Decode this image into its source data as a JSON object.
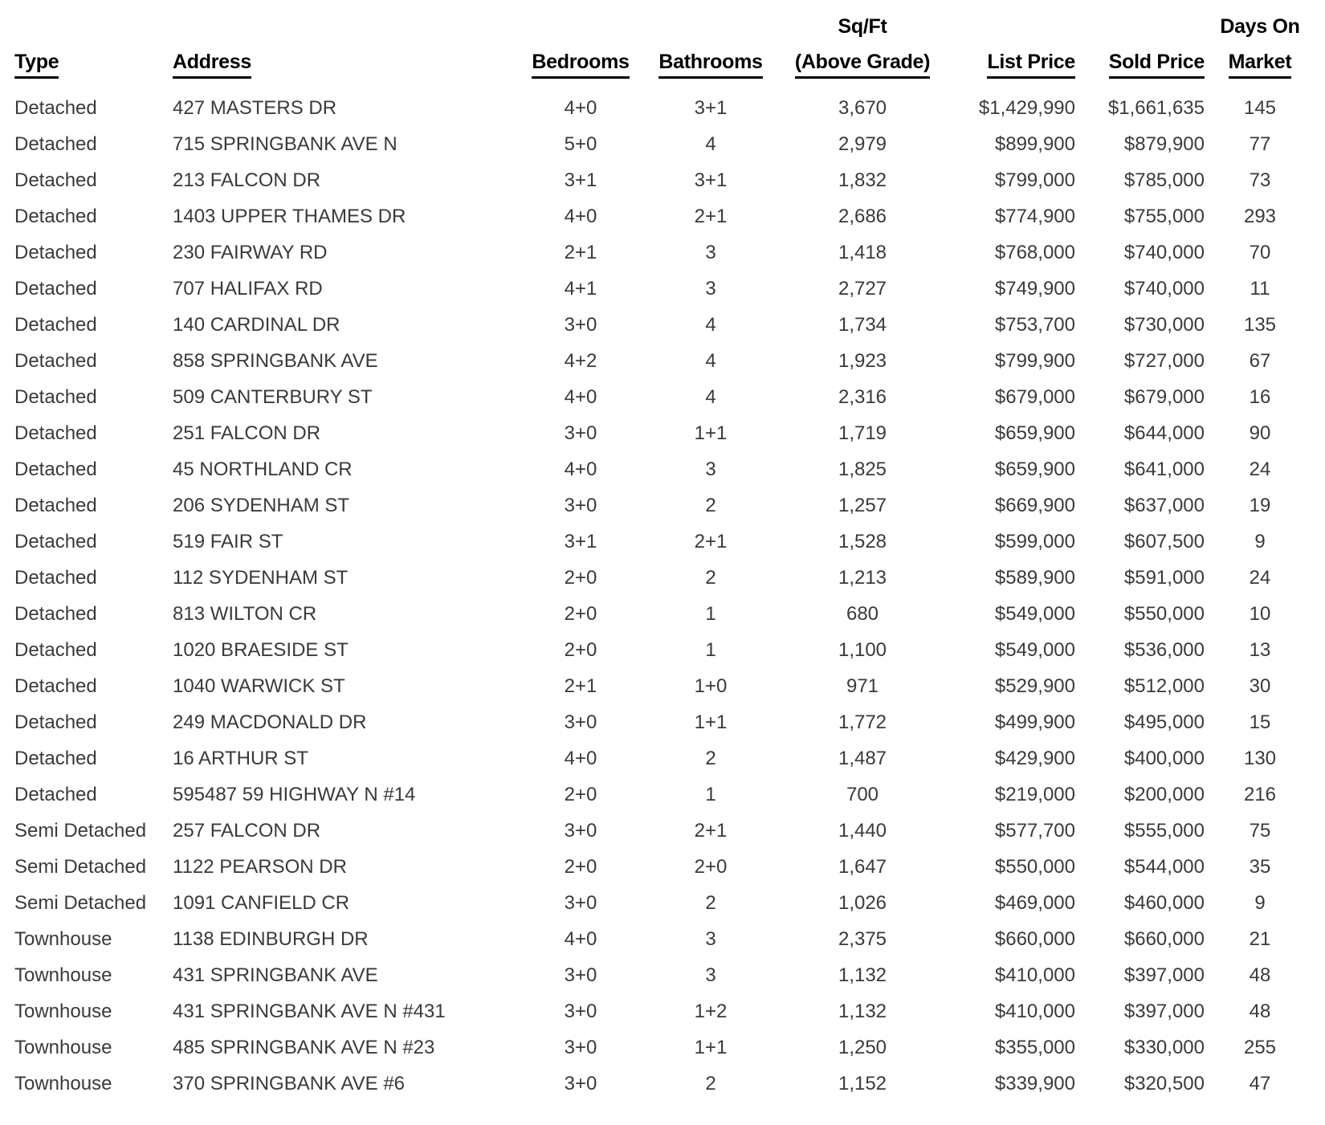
{
  "page": {
    "background_color": "#ffffff",
    "header_text_color": "#000000",
    "body_text_color": "#3a3a3a"
  },
  "table": {
    "columns": [
      {
        "id": "type",
        "label_line1": "",
        "label_line2": "Type",
        "align": "left"
      },
      {
        "id": "address",
        "label_line1": "",
        "label_line2": "Address",
        "align": "left"
      },
      {
        "id": "bedrooms",
        "label_line1": "",
        "label_line2": "Bedrooms",
        "align": "center"
      },
      {
        "id": "bathrooms",
        "label_line1": "",
        "label_line2": "Bathrooms",
        "align": "center"
      },
      {
        "id": "sqft",
        "label_line1": "Sq/Ft",
        "label_line2": "(Above Grade)",
        "align": "center"
      },
      {
        "id": "list-price",
        "label_line1": "",
        "label_line2": "List Price",
        "align": "right"
      },
      {
        "id": "sold-price",
        "label_line1": "",
        "label_line2": "Sold Price",
        "align": "right"
      },
      {
        "id": "days-on-market",
        "label_line1": "Days On",
        "label_line2": "Market",
        "align": "center"
      }
    ],
    "rows": [
      [
        "Detached",
        "427 MASTERS DR",
        "4+0",
        "3+1",
        "3,670",
        "$1,429,990",
        "$1,661,635",
        "145"
      ],
      [
        "Detached",
        "715 SPRINGBANK AVE N",
        "5+0",
        "4",
        "2,979",
        "$899,900",
        "$879,900",
        "77"
      ],
      [
        "Detached",
        "213 FALCON DR",
        "3+1",
        "3+1",
        "1,832",
        "$799,000",
        "$785,000",
        "73"
      ],
      [
        "Detached",
        "1403 UPPER THAMES DR",
        "4+0",
        "2+1",
        "2,686",
        "$774,900",
        "$755,000",
        "293"
      ],
      [
        "Detached",
        "230 FAIRWAY RD",
        "2+1",
        "3",
        "1,418",
        "$768,000",
        "$740,000",
        "70"
      ],
      [
        "Detached",
        "707 HALIFAX RD",
        "4+1",
        "3",
        "2,727",
        "$749,900",
        "$740,000",
        "11"
      ],
      [
        "Detached",
        "140 CARDINAL DR",
        "3+0",
        "4",
        "1,734",
        "$753,700",
        "$730,000",
        "135"
      ],
      [
        "Detached",
        "858 SPRINGBANK AVE",
        "4+2",
        "4",
        "1,923",
        "$799,900",
        "$727,000",
        "67"
      ],
      [
        "Detached",
        "509 CANTERBURY ST",
        "4+0",
        "4",
        "2,316",
        "$679,000",
        "$679,000",
        "16"
      ],
      [
        "Detached",
        "251 FALCON DR",
        "3+0",
        "1+1",
        "1,719",
        "$659,900",
        "$644,000",
        "90"
      ],
      [
        "Detached",
        "45 NORTHLAND CR",
        "4+0",
        "3",
        "1,825",
        "$659,900",
        "$641,000",
        "24"
      ],
      [
        "Detached",
        "206 SYDENHAM ST",
        "3+0",
        "2",
        "1,257",
        "$669,900",
        "$637,000",
        "19"
      ],
      [
        "Detached",
        "519 FAIR ST",
        "3+1",
        "2+1",
        "1,528",
        "$599,000",
        "$607,500",
        "9"
      ],
      [
        "Detached",
        "112 SYDENHAM ST",
        "2+0",
        "2",
        "1,213",
        "$589,900",
        "$591,000",
        "24"
      ],
      [
        "Detached",
        "813 WILTON CR",
        "2+0",
        "1",
        "680",
        "$549,000",
        "$550,000",
        "10"
      ],
      [
        "Detached",
        "1020 BRAESIDE ST",
        "2+0",
        "1",
        "1,100",
        "$549,000",
        "$536,000",
        "13"
      ],
      [
        "Detached",
        "1040 WARWICK ST",
        "2+1",
        "1+0",
        "971",
        "$529,900",
        "$512,000",
        "30"
      ],
      [
        "Detached",
        "249 MACDONALD DR",
        "3+0",
        "1+1",
        "1,772",
        "$499,900",
        "$495,000",
        "15"
      ],
      [
        "Detached",
        "16 ARTHUR ST",
        "4+0",
        "2",
        "1,487",
        "$429,900",
        "$400,000",
        "130"
      ],
      [
        "Detached",
        "595487 59 HIGHWAY N #14",
        "2+0",
        "1",
        "700",
        "$219,000",
        "$200,000",
        "216"
      ],
      [
        "Semi Detached",
        "257 FALCON DR",
        "3+0",
        "2+1",
        "1,440",
        "$577,700",
        "$555,000",
        "75"
      ],
      [
        "Semi Detached",
        "1122 PEARSON DR",
        "2+0",
        "2+0",
        "1,647",
        "$550,000",
        "$544,000",
        "35"
      ],
      [
        "Semi Detached",
        "1091 CANFIELD CR",
        "3+0",
        "2",
        "1,026",
        "$469,000",
        "$460,000",
        "9"
      ],
      [
        "Townhouse",
        "1138 EDINBURGH DR",
        "4+0",
        "3",
        "2,375",
        "$660,000",
        "$660,000",
        "21"
      ],
      [
        "Townhouse",
        "431 SPRINGBANK AVE",
        "3+0",
        "3",
        "1,132",
        "$410,000",
        "$397,000",
        "48"
      ],
      [
        "Townhouse",
        "431 SPRINGBANK AVE N #431",
        "3+0",
        "1+2",
        "1,132",
        "$410,000",
        "$397,000",
        "48"
      ],
      [
        "Townhouse",
        "485 SPRINGBANK AVE N #23",
        "3+0",
        "1+1",
        "1,250",
        "$355,000",
        "$330,000",
        "255"
      ],
      [
        "Townhouse",
        "370 SPRINGBANK AVE #6",
        "3+0",
        "2",
        "1,152",
        "$339,900",
        "$320,500",
        "47"
      ]
    ]
  }
}
